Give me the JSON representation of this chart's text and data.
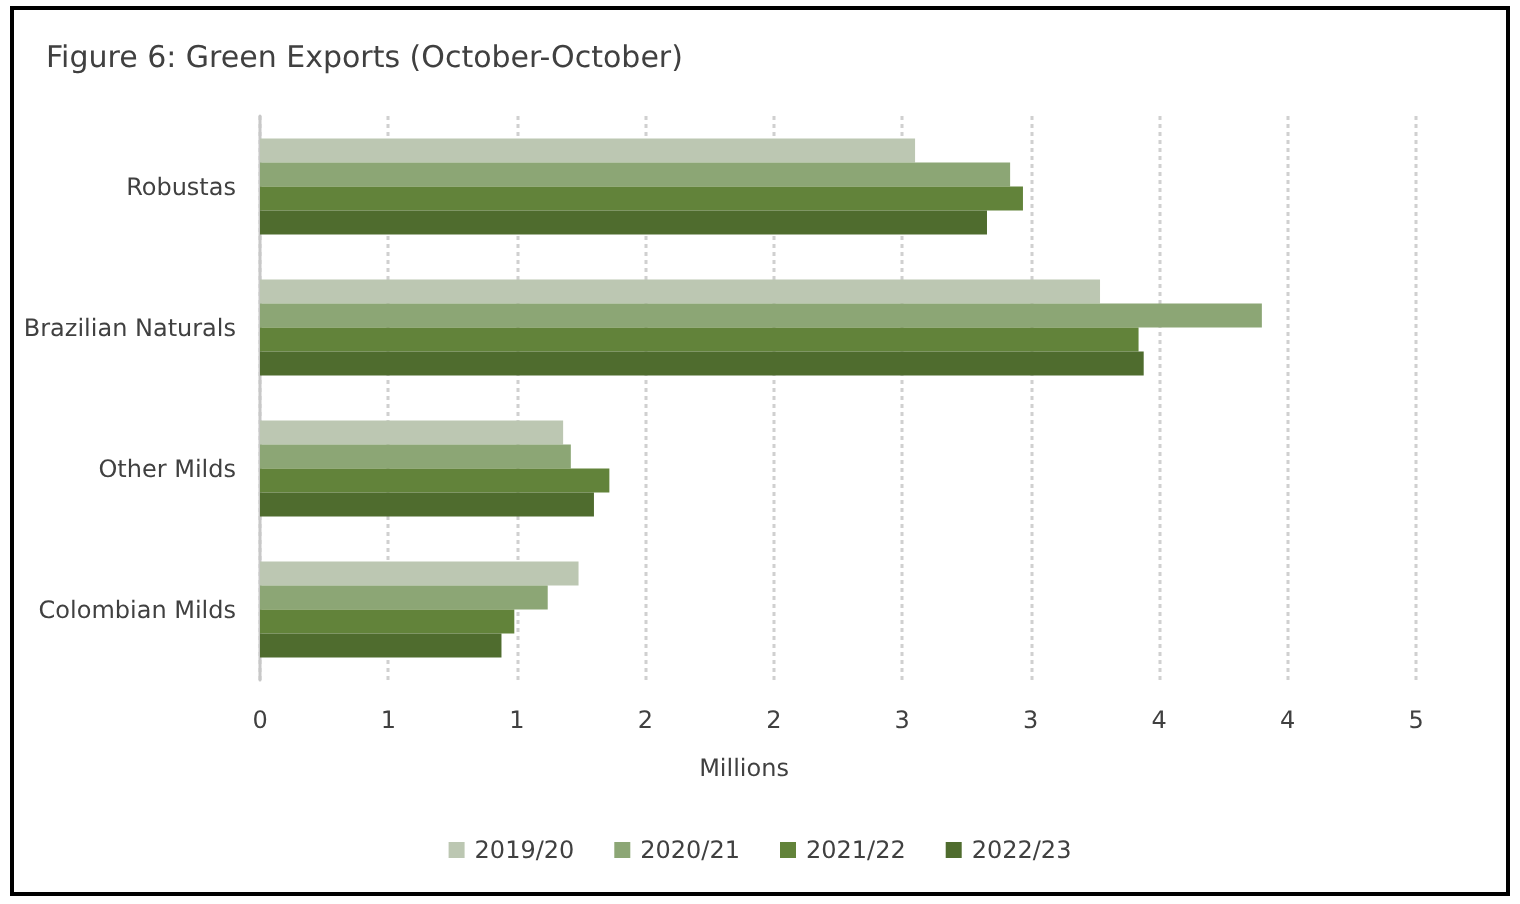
{
  "chart_data": {
    "type": "bar",
    "orientation": "horizontal",
    "title": "Figure 6: Green Exports (October-October)",
    "xlabel": "Millions",
    "categories": [
      "Robustas",
      "Brazilian Naturals",
      "Other Milds",
      "Colombian Milds"
    ],
    "series": [
      {
        "name": "2019/20",
        "color": "#bcc7b2",
        "values": [
          2.55,
          3.27,
          1.18,
          1.24
        ]
      },
      {
        "name": "2020/21",
        "color": "#8ca675",
        "values": [
          2.92,
          3.9,
          1.21,
          1.12
        ]
      },
      {
        "name": "2021/22",
        "color": "#62833a",
        "values": [
          2.97,
          3.42,
          1.36,
          0.99
        ]
      },
      {
        "name": "2022/23",
        "color": "#4f6c2e",
        "values": [
          2.83,
          3.44,
          1.3,
          0.94
        ]
      }
    ],
    "xlim": [
      0,
      4.5
    ],
    "xticks": [
      0,
      {
        "value": 0.5,
        "label": "1"
      },
      1,
      {
        "value": 1.5,
        "label": "2"
      },
      2,
      {
        "value": 2.5,
        "label": "3"
      },
      3,
      {
        "value": 3.5,
        "label": "4"
      },
      4,
      {
        "value": 4.5,
        "label": "5"
      }
    ],
    "grid": "x",
    "legend": "bottom"
  }
}
